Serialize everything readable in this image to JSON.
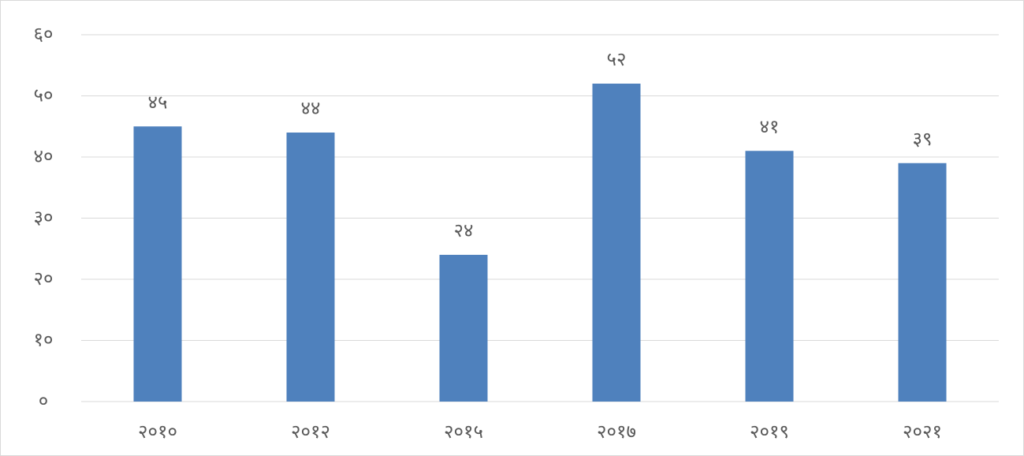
{
  "chart_data": {
    "type": "bar",
    "categories": [
      "२०१०",
      "२०१२",
      "२०१५",
      "२०१७",
      "२०१९",
      "२०२१"
    ],
    "values": [
      45,
      44,
      24,
      52,
      41,
      39
    ],
    "value_labels": [
      "४५",
      "४४",
      "२४",
      "५२",
      "४१",
      "३९"
    ],
    "color": "#4f81bd",
    "ylim": [
      0,
      60
    ],
    "yticks": [
      {
        "value": 0,
        "label": "०"
      },
      {
        "value": 10,
        "label": "१०"
      },
      {
        "value": 20,
        "label": "२०"
      },
      {
        "value": 30,
        "label": "३०"
      },
      {
        "value": 40,
        "label": "४०"
      },
      {
        "value": 50,
        "label": "५०"
      },
      {
        "value": 60,
        "label": "६०"
      }
    ],
    "grid": true
  }
}
